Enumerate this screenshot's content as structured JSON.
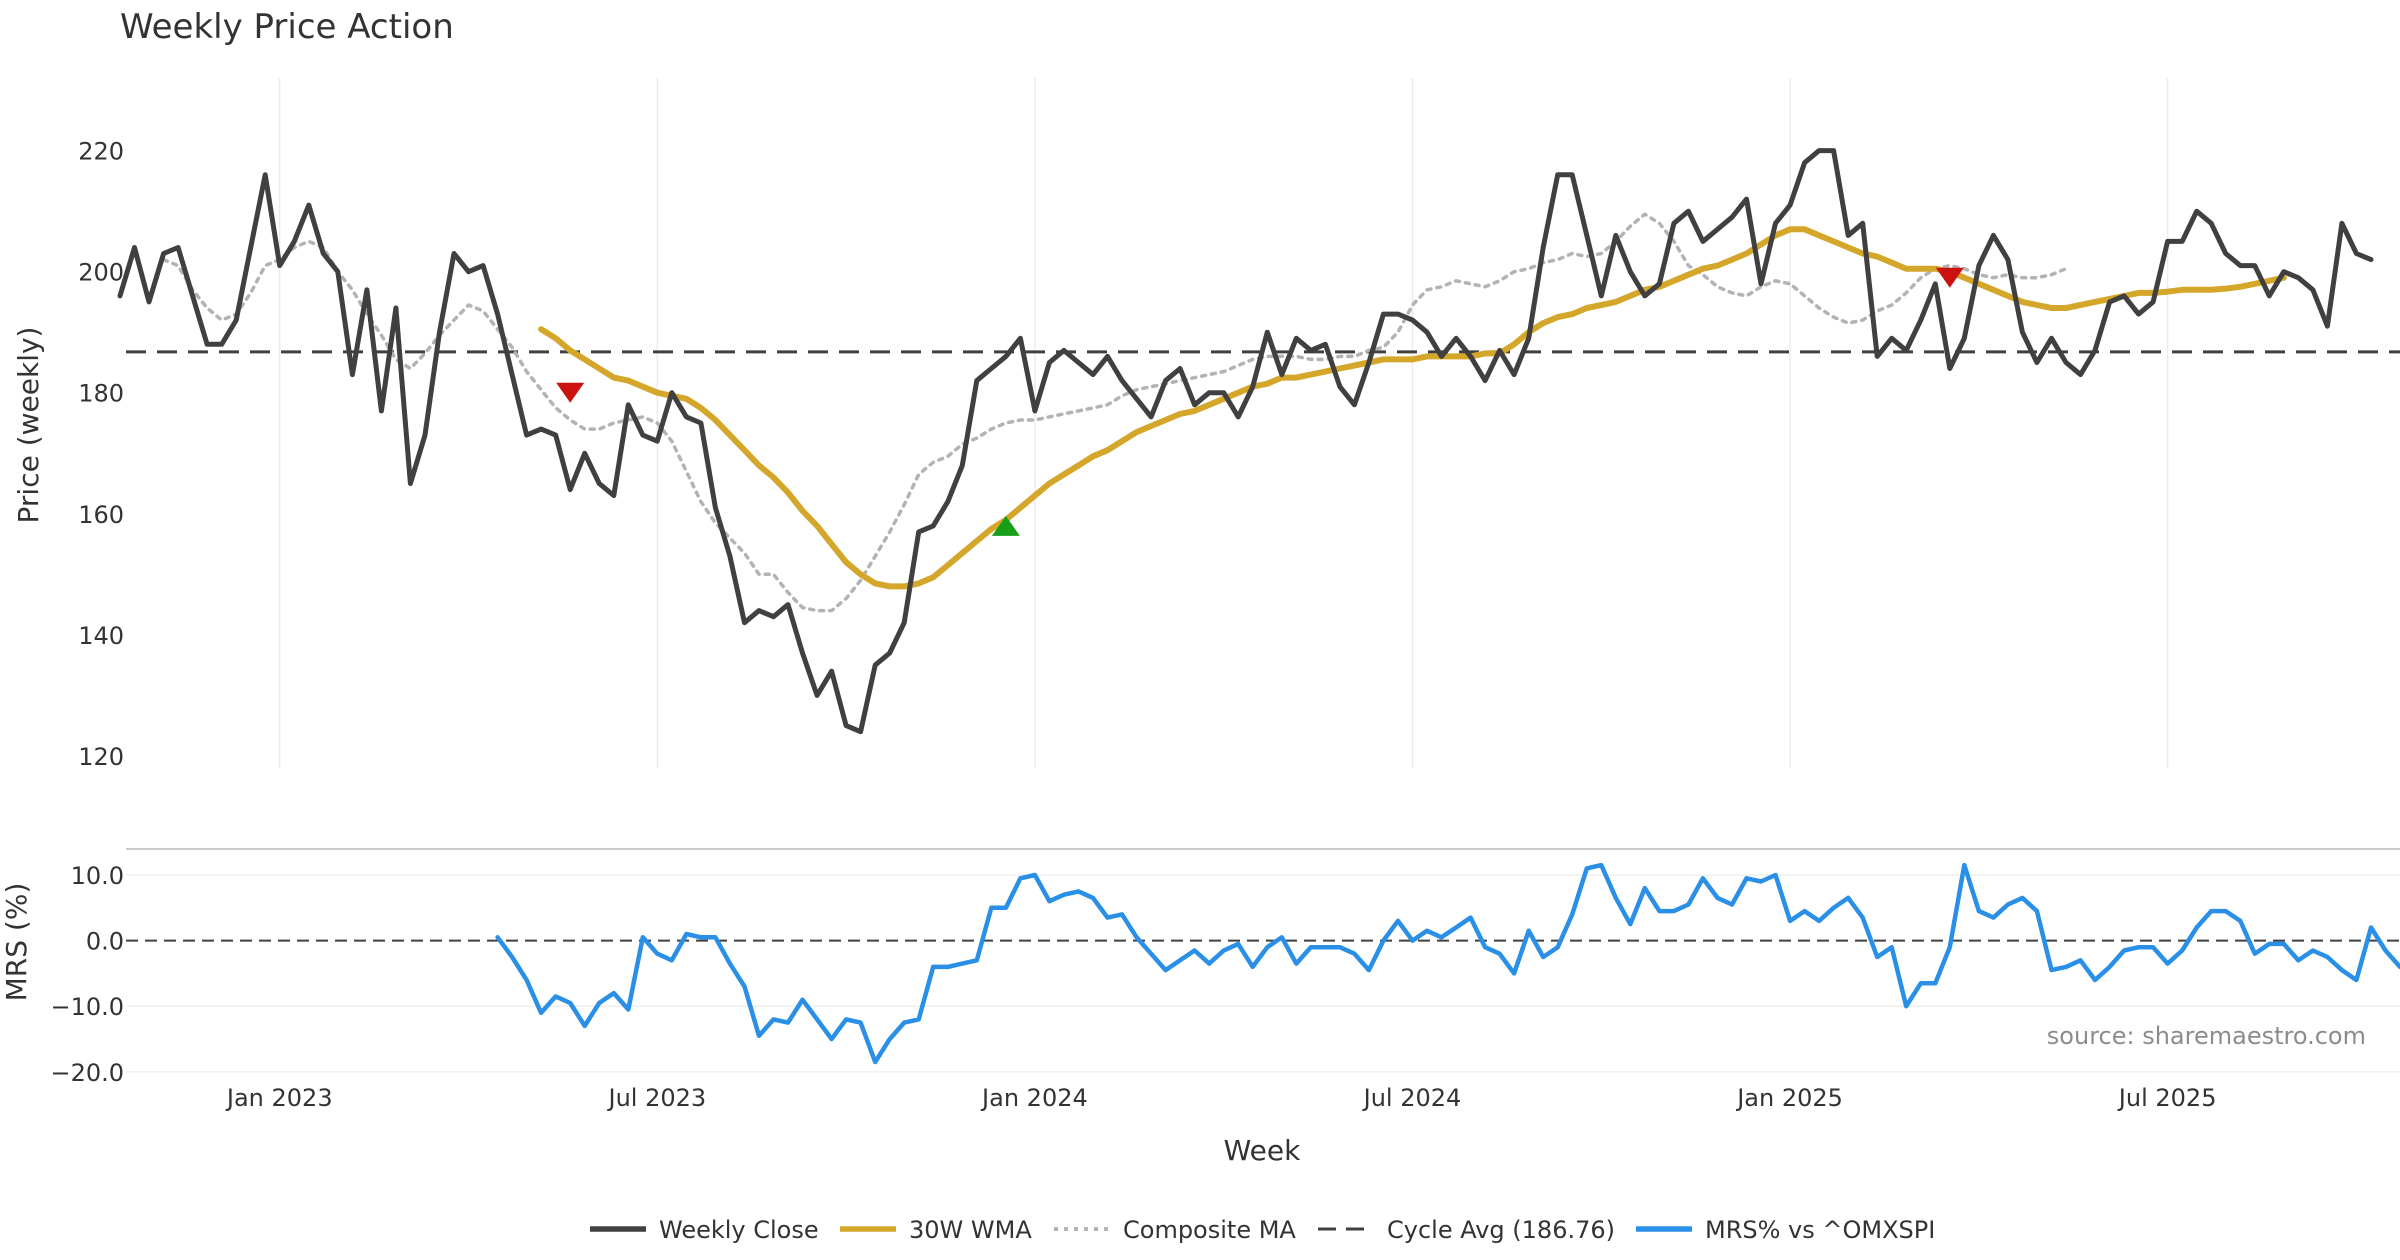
{
  "chart_data": {
    "type": "line",
    "title": "Weekly Price Action",
    "xlabel": "Week",
    "source": "source: sharemaestro.com",
    "x_ticks": [
      "Jan 2023",
      "Jul 2023",
      "Jan 2024",
      "Jul 2024",
      "Jan 2025",
      "Jul 2025"
    ],
    "price_panel": {
      "ylabel": "Price (weekly)",
      "ylim": [
        118,
        232
      ],
      "y_ticks": [
        "120",
        "140",
        "160",
        "180",
        "200",
        "220"
      ],
      "cycle_avg": 186.76,
      "series": [
        {
          "name": "Weekly Close",
          "color": "#404040",
          "values": [
            196,
            204,
            195,
            203,
            204,
            196,
            188,
            188,
            192,
            204,
            216,
            201,
            205,
            211,
            203,
            200,
            183,
            197,
            177,
            194,
            165,
            173,
            190,
            203,
            200,
            201,
            193,
            183,
            173,
            174,
            173,
            164,
            170,
            165,
            163,
            178,
            173,
            172,
            180,
            176,
            175,
            161,
            153,
            142,
            144,
            143,
            145,
            137,
            130,
            134,
            125,
            124,
            135,
            137,
            142,
            157,
            158,
            162,
            168,
            182,
            184,
            186,
            189,
            177,
            185,
            187,
            185,
            183,
            186,
            182,
            179,
            176,
            182,
            184,
            178,
            180,
            180,
            176,
            181,
            190,
            183,
            189,
            187,
            188,
            181,
            178,
            185,
            193,
            193,
            192,
            190,
            186,
            189,
            186,
            182,
            187,
            183,
            189,
            204,
            216,
            216,
            206,
            196,
            206,
            200,
            196,
            198,
            208,
            210,
            205,
            207,
            209,
            212,
            198,
            208,
            211,
            218,
            220,
            220,
            206,
            208,
            186,
            189,
            187,
            192,
            198,
            184,
            189,
            201,
            206,
            202,
            190,
            185,
            189,
            185,
            183,
            187,
            195,
            196,
            193,
            195,
            205,
            205,
            210,
            208,
            203,
            201,
            201,
            196,
            200,
            199,
            197,
            191,
            208,
            203,
            202
          ]
        },
        {
          "name": "30W WMA",
          "color": "#d4a62a",
          "start_index": 29,
          "values": [
            190.5,
            189.0,
            187.0,
            185.5,
            184.0,
            182.5,
            182.0,
            181.0,
            180.0,
            179.5,
            179.0,
            177.5,
            175.5,
            173.0,
            170.5,
            168.0,
            166.0,
            163.5,
            160.5,
            158.0,
            155.0,
            152.0,
            150.0,
            148.5,
            148.0,
            148.0,
            148.5,
            149.5,
            151.5,
            153.5,
            155.5,
            157.5,
            159.0,
            161.0,
            163.0,
            165.0,
            166.5,
            168.0,
            169.5,
            170.5,
            172.0,
            173.5,
            174.5,
            175.5,
            176.5,
            177.0,
            178.0,
            179.0,
            180.0,
            181.0,
            181.5,
            182.5,
            182.5,
            183.0,
            183.5,
            184.0,
            184.5,
            185.0,
            185.5,
            185.5,
            185.5,
            186.0,
            186.0,
            186.0,
            186.0,
            186.5,
            186.5,
            188.0,
            190.0,
            191.5,
            192.5,
            193.0,
            194.0,
            194.5,
            195.0,
            196.0,
            197.0,
            197.5,
            198.5,
            199.5,
            200.5,
            201.0,
            202.0,
            203.0,
            204.5,
            206.0,
            207.0,
            207.0,
            206.0,
            205.0,
            204.0,
            203.0,
            202.5,
            201.5,
            200.5,
            200.5,
            200.5,
            200.0,
            199.0,
            198.0,
            197.0,
            196.0,
            195.0,
            194.5,
            194.0,
            194.0,
            194.5,
            195.0,
            195.5,
            196.0,
            196.5,
            196.5,
            196.7,
            197.0,
            197.0,
            197.0,
            197.2,
            197.5,
            198.0,
            198.5,
            199.0
          ]
        },
        {
          "name": "Composite MA",
          "color": "#b3b3b3",
          "start_index": 3,
          "values": [
            202.0,
            201.0,
            197.0,
            194.0,
            192.0,
            193.0,
            196.5,
            201.0,
            202.0,
            204.0,
            205.0,
            204.0,
            200.0,
            197.0,
            193.0,
            189.5,
            185.5,
            184.0,
            186.5,
            189.5,
            192.0,
            194.5,
            193.5,
            190.5,
            187.5,
            183.5,
            180.5,
            177.5,
            175.5,
            174.0,
            174.0,
            175.0,
            175.5,
            176.0,
            175.0,
            172.0,
            167.0,
            162.0,
            158.5,
            156.0,
            153.5,
            150.0,
            150.0,
            147.0,
            144.5,
            144.0,
            144.0,
            146.0,
            149.0,
            153.0,
            157.0,
            161.5,
            166.5,
            168.5,
            169.5,
            171.5,
            172.5,
            174.0,
            175.0,
            175.5,
            175.5,
            176.0,
            176.5,
            177.0,
            177.5,
            178.0,
            179.5,
            180.5,
            181.0,
            181.5,
            182.0,
            182.5,
            183.0,
            183.5,
            184.5,
            185.5,
            186.0,
            186.0,
            186.0,
            185.5,
            185.5,
            186.0,
            186.0,
            187.0,
            187.5,
            190.0,
            194.5,
            197.0,
            197.5,
            198.5,
            198.0,
            197.5,
            198.5,
            200.0,
            200.5,
            201.5,
            202.0,
            203.0,
            202.5,
            203.0,
            205.0,
            207.5,
            209.5,
            208.0,
            205.0,
            201.0,
            199.5,
            197.5,
            196.5,
            196.0,
            197.5,
            198.5,
            198.0,
            196.0,
            194.0,
            192.5,
            191.5,
            192.0,
            193.5,
            194.5,
            196.5,
            199.0,
            200.5,
            201.0,
            200.5,
            199.5,
            199.0,
            199.5,
            199.0,
            199.0,
            199.5,
            200.5
          ]
        }
      ],
      "signals": [
        {
          "type": "sell",
          "week_index": 31,
          "value": 180,
          "color": "#cc1111"
        },
        {
          "type": "buy",
          "week_index": 61,
          "value": 158,
          "color": "#17a017"
        },
        {
          "type": "sell",
          "week_index": 126,
          "value": 199,
          "color": "#cc1111"
        }
      ]
    },
    "mrs_panel": {
      "ylabel": "MRS (%)",
      "ylim": [
        -22,
        13.5
      ],
      "y_ticks": [
        "10.0",
        "0.0",
        "−10.0",
        "−20.0"
      ],
      "zero_line": 0,
      "series": [
        {
          "name": "MRS% vs ^OMXSPI",
          "color": "#2a8fe6",
          "start_index": 26,
          "values": [
            0.5,
            -2.5,
            -6.0,
            -11.0,
            -8.5,
            -9.5,
            -13.0,
            -9.5,
            -8.0,
            -10.5,
            0.5,
            -2.0,
            -3.0,
            1.0,
            0.5,
            0.5,
            -3.5,
            -7.0,
            -14.5,
            -12.0,
            -12.5,
            -9.0,
            -12.0,
            -15.0,
            -12.0,
            -12.5,
            -18.5,
            -15.0,
            -12.5,
            -12.0,
            -4.0,
            -4.0,
            -3.5,
            -3.0,
            5.0,
            5.0,
            9.5,
            10.0,
            6.0,
            7.0,
            7.5,
            6.5,
            3.5,
            4.0,
            0.5,
            -2.0,
            -4.5,
            -3.0,
            -1.5,
            -3.5,
            -1.5,
            -0.5,
            -4.0,
            -1.0,
            0.5,
            -3.5,
            -1.0,
            -1.0,
            -1.0,
            -2.0,
            -4.5,
            0.0,
            3.0,
            0.0,
            1.5,
            0.5,
            2.0,
            3.5,
            -1.0,
            -2.0,
            -5.0,
            1.5,
            -2.5,
            -1.0,
            4.0,
            11.0,
            11.5,
            6.5,
            2.5,
            8.0,
            4.5,
            4.5,
            5.5,
            9.5,
            6.5,
            5.5,
            9.5,
            9.0,
            10.0,
            3.0,
            4.5,
            3.0,
            5.0,
            6.5,
            3.5,
            -2.5,
            -1.0,
            -10.0,
            -6.5,
            -6.5,
            -1.0,
            11.5,
            4.5,
            3.5,
            5.5,
            6.5,
            4.5,
            -4.5,
            -4.0,
            -3.0,
            -6.0,
            -4.0,
            -1.5,
            -1.0,
            -1.0,
            -3.5,
            -1.5,
            2.0,
            4.5,
            4.5,
            3.0,
            -2.0,
            -0.5,
            -0.5,
            -3.0,
            -1.5,
            -2.5,
            -4.5,
            -6.0,
            2.0,
            -1.5,
            -4.0
          ]
        }
      ]
    },
    "legend": {
      "placement": "bottom-center",
      "entries": [
        {
          "label": "Weekly Close",
          "color": "#404040",
          "style": "solid"
        },
        {
          "label": "30W WMA",
          "color": "#d4a62a",
          "style": "solid"
        },
        {
          "label": "Composite MA",
          "color": "#b3b3b3",
          "style": "dotted"
        },
        {
          "label": "Cycle Avg (186.76)",
          "color": "#404040",
          "style": "dashed"
        },
        {
          "label": "MRS% vs ^OMXSPI",
          "color": "#2a8fe6",
          "style": "solid"
        }
      ]
    }
  }
}
